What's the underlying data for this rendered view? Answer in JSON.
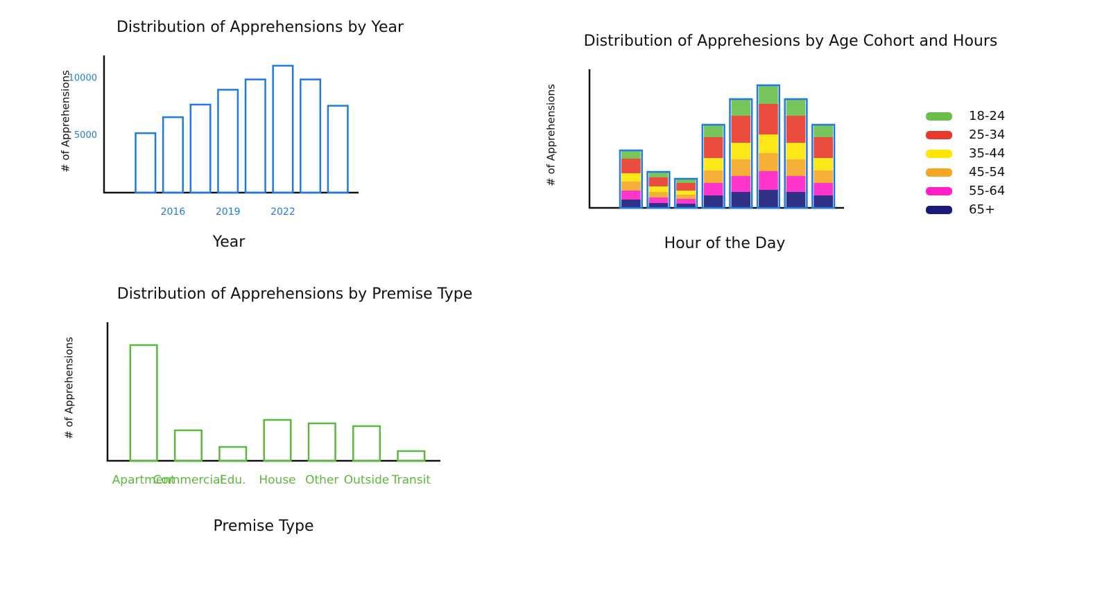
{
  "chart_data": [
    {
      "type": "bar",
      "title": "Distribution of Apprehensions by Year",
      "x_label": "Year",
      "y_label": "# of Apprehensions",
      "categories": [
        null,
        "2016",
        null,
        "2019",
        null,
        "2022",
        null,
        null
      ],
      "values": [
        5200,
        6600,
        7700,
        9000,
        9900,
        11100,
        9900,
        7600
      ],
      "color": "#1f7ae0",
      "ylim": [
        0,
        12000
      ],
      "yticks": [
        5000,
        10000
      ]
    },
    {
      "type": "stacked_bar",
      "title": "Distribution of Apprehesions by Age Cohort and Hours",
      "x_label": "Hour of the Day",
      "y_label": "# of Apprehensions",
      "categories": [
        null,
        null,
        null,
        null,
        null,
        null,
        null,
        null
      ],
      "color": "#1f7ae0",
      "ylim": [
        0,
        200
      ],
      "series": [
        {
          "name": "18-24",
          "color": "#6abf4b",
          "values": [
            12,
            8,
            6,
            18,
            24,
            27,
            24,
            18
          ]
        },
        {
          "name": "25-34",
          "color": "#e8392b",
          "values": [
            21,
            13,
            11,
            30,
            39,
            44,
            39,
            30
          ]
        },
        {
          "name": "35-44",
          "color": "#ffe600",
          "values": [
            12,
            8,
            6,
            18,
            24,
            27,
            24,
            18
          ]
        },
        {
          "name": "45-54",
          "color": "#f5a623",
          "values": [
            13,
            8,
            6,
            18,
            24,
            26,
            24,
            18
          ]
        },
        {
          "name": "55-64",
          "color": "#ff1fc7",
          "values": [
            13,
            8,
            7,
            18,
            23,
            27,
            23,
            18
          ]
        },
        {
          "name": "65+",
          "color": "#1a1a7a",
          "values": [
            12,
            7,
            6,
            18,
            23,
            26,
            23,
            18
          ]
        }
      ]
    },
    {
      "type": "bar",
      "title": "Distribution of Apprehensions by Premise Type",
      "x_label": "Premise Type",
      "y_label": "# of Apprehensions",
      "categories": [
        "Apartment",
        "Commercial",
        "Edu.",
        "House",
        "Other",
        "Outside",
        "Transit"
      ],
      "values": [
        167,
        44,
        20,
        59,
        54,
        50,
        14
      ],
      "color": "#5cb83c",
      "ylim": [
        0,
        200
      ]
    }
  ]
}
